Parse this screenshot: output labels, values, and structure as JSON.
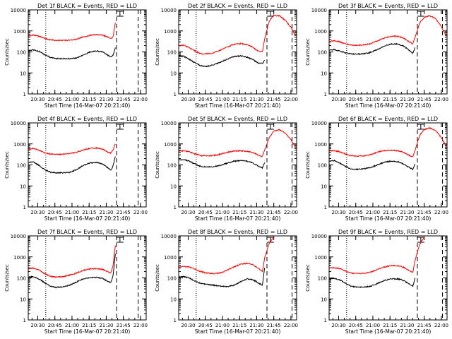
{
  "figure": {
    "x_tick_labels": [
      "20:30",
      "20:45",
      "21:00",
      "21:15",
      "21:30",
      "21:45",
      "22:00"
    ],
    "y_tick_labels": [
      "1",
      "10",
      "100",
      "1000",
      "10000"
    ],
    "colors": {
      "events": "#000000",
      "lld": "#ff0000",
      "axes": "#000000"
    }
  },
  "chart_data": [
    {
      "type": "line",
      "log_y": true,
      "ylim": [
        1,
        10000
      ],
      "title": "Det 1f BLACK = Events, RED = LLD",
      "xlabel": "Start Time (16-Mar-07 20:21:40)",
      "ylabel": "Counts/sec",
      "xlim": [
        "20:21:40",
        "22:05"
      ],
      "vlines_dotted": [
        "20:37"
      ],
      "vlines_dashed": [
        "21:39",
        "21:58"
      ],
      "flag_times": [
        "21:42"
      ],
      "series": [
        {
          "name": "Events",
          "color": "#000000",
          "x": [
            "20:22",
            "20:26",
            "20:31",
            "20:36",
            "20:41",
            "20:46",
            "20:52",
            "20:58",
            "21:04",
            "21:10",
            "21:16",
            "21:22",
            "21:27",
            "21:31",
            "21:34",
            "21:36",
            "21:38"
          ],
          "y": [
            115,
            125,
            108,
            75,
            55,
            48,
            48,
            47,
            52,
            70,
            100,
            110,
            100,
            72,
            55,
            70,
            160
          ]
        },
        {
          "name": "LLD",
          "color": "#ff0000",
          "x": [
            "20:22",
            "20:26",
            "20:31",
            "20:36",
            "20:41",
            "20:46",
            "20:52",
            "20:58",
            "21:04",
            "21:10",
            "21:16",
            "21:22",
            "21:27",
            "21:31",
            "21:34",
            "21:36",
            "21:38"
          ],
          "y": [
            560,
            640,
            560,
            440,
            375,
            360,
            355,
            360,
            400,
            520,
            620,
            660,
            620,
            520,
            420,
            520,
            2400
          ]
        }
      ]
    },
    {
      "type": "line",
      "log_y": true,
      "ylim": [
        1,
        10000
      ],
      "title": "Det 2f BLACK = Events, RED = LLD",
      "xlabel": "Start Time (16-Mar-07 20:21:40)",
      "ylabel": "Counts/sec",
      "xlim": [
        "20:21:40",
        "22:05"
      ],
      "vlines_dotted": [
        "20:37"
      ],
      "vlines_dashed": [
        "21:39",
        "22:01"
      ],
      "flag_times": [
        "21:42"
      ],
      "series": [
        {
          "name": "Events",
          "color": "#000000",
          "x": [
            "20:22",
            "20:26",
            "20:31",
            "20:36",
            "20:41",
            "20:46",
            "20:52",
            "20:58",
            "21:04",
            "21:10",
            "21:16",
            "21:22",
            "21:27",
            "21:31",
            "21:35",
            "21:37"
          ],
          "y": [
            65,
            62,
            45,
            30,
            22,
            20,
            24,
            32,
            45,
            60,
            65,
            55,
            42,
            30,
            28,
            40
          ]
        },
        {
          "name": "LLD",
          "color": "#ff0000",
          "x": [
            "20:22",
            "20:26",
            "20:31",
            "20:36",
            "20:41",
            "20:46",
            "20:52",
            "20:58",
            "21:04",
            "21:10",
            "21:16",
            "21:22",
            "21:27",
            "21:31",
            "21:35",
            "21:37",
            "21:41",
            "21:45",
            "21:50",
            "21:55",
            "22:00",
            "22:04"
          ],
          "y": [
            200,
            210,
            160,
            110,
            82,
            80,
            90,
            120,
            170,
            230,
            250,
            220,
            160,
            110,
            100,
            400,
            3000,
            5500,
            5200,
            3200,
            1500,
            600
          ]
        }
      ]
    },
    {
      "type": "line",
      "log_y": true,
      "ylim": [
        1,
        10000
      ],
      "title": "Det 3f BLACK = Events, RED = LLD",
      "xlabel": "Start Time (16-Mar-07 20:21:40)",
      "ylabel": "Counts/sec",
      "xlim": [
        "20:21:40",
        "22:05"
      ],
      "vlines_dotted": [
        "20:37"
      ],
      "vlines_dashed": [
        "21:39",
        "22:01"
      ],
      "flag_times": [
        "21:42"
      ],
      "series": [
        {
          "name": "Events",
          "color": "#000000",
          "x": [
            "20:22",
            "20:26",
            "20:31",
            "20:36",
            "20:41",
            "20:46",
            "20:52",
            "20:58",
            "21:04",
            "21:10",
            "21:16",
            "21:22",
            "21:27",
            "21:31",
            "21:35",
            "21:37"
          ],
          "y": [
            120,
            130,
            110,
            90,
            80,
            78,
            82,
            95,
            130,
            190,
            240,
            235,
            190,
            130,
            85,
            160
          ]
        },
        {
          "name": "LLD",
          "color": "#ff0000",
          "x": [
            "20:22",
            "20:26",
            "20:31",
            "20:36",
            "20:41",
            "20:46",
            "20:52",
            "20:58",
            "21:04",
            "21:10",
            "21:16",
            "21:22",
            "21:27",
            "21:31",
            "21:35",
            "21:37",
            "21:41",
            "21:45",
            "21:50",
            "21:55",
            "22:00",
            "22:04"
          ],
          "y": [
            320,
            350,
            300,
            240,
            210,
            205,
            215,
            250,
            330,
            450,
            560,
            560,
            450,
            320,
            240,
            500,
            2400,
            4500,
            5300,
            3800,
            1600,
            600
          ]
        }
      ]
    },
    {
      "type": "line",
      "log_y": true,
      "ylim": [
        1,
        10000
      ],
      "title": "Det 4f BLACK = Events, RED = LLD",
      "xlabel": "Start Time (16-Mar-07 20:21:40)",
      "ylabel": "Counts/sec",
      "xlim": [
        "20:21:40",
        "22:05"
      ],
      "vlines_dotted": [
        "20:37"
      ],
      "vlines_dashed": [
        "21:39",
        "21:58"
      ],
      "flag_times": [
        "21:42"
      ],
      "series": [
        {
          "name": "Events",
          "color": "#000000",
          "x": [
            "20:22",
            "20:26",
            "20:31",
            "20:36",
            "20:41",
            "20:46",
            "20:52",
            "20:58",
            "21:04",
            "21:10",
            "21:16",
            "21:22",
            "21:27",
            "21:31",
            "21:34",
            "21:36",
            "21:38"
          ],
          "y": [
            130,
            140,
            95,
            60,
            45,
            42,
            42,
            44,
            60,
            95,
            125,
            130,
            110,
            75,
            55,
            90,
            250
          ]
        },
        {
          "name": "LLD",
          "color": "#ff0000",
          "x": [
            "20:22",
            "20:26",
            "20:31",
            "20:36",
            "20:41",
            "20:46",
            "20:52",
            "20:58",
            "21:04",
            "21:10",
            "21:16",
            "21:22",
            "21:27",
            "21:31",
            "21:34",
            "21:36",
            "21:38"
          ],
          "y": [
            560,
            620,
            500,
            380,
            330,
            320,
            320,
            340,
            400,
            520,
            620,
            640,
            560,
            420,
            360,
            520,
            1000
          ]
        }
      ]
    },
    {
      "type": "line",
      "log_y": true,
      "ylim": [
        1,
        10000
      ],
      "title": "Det 5f BLACK = Events, RED = LLD",
      "xlabel": "Start Time (16-Mar-07 20:21:40)",
      "ylabel": "Counts/sec",
      "xlim": [
        "20:21:40",
        "22:05"
      ],
      "vlines_dotted": [
        "20:37"
      ],
      "vlines_dashed": [
        "21:39",
        "22:01"
      ],
      "flag_times": [
        "21:42"
      ],
      "series": [
        {
          "name": "Events",
          "color": "#000000",
          "x": [
            "20:22",
            "20:26",
            "20:31",
            "20:36",
            "20:41",
            "20:46",
            "20:52",
            "20:58",
            "21:04",
            "21:10",
            "21:16",
            "21:22",
            "21:27",
            "21:31",
            "21:35",
            "21:37"
          ],
          "y": [
            170,
            180,
            150,
            110,
            85,
            80,
            82,
            95,
            120,
            150,
            160,
            150,
            120,
            90,
            70,
            130
          ]
        },
        {
          "name": "LLD",
          "color": "#ff0000",
          "x": [
            "20:22",
            "20:26",
            "20:31",
            "20:36",
            "20:41",
            "20:46",
            "20:52",
            "20:58",
            "21:04",
            "21:10",
            "21:16",
            "21:22",
            "21:27",
            "21:31",
            "21:35",
            "21:37",
            "21:41",
            "21:45",
            "21:50",
            "21:55",
            "22:00",
            "22:04"
          ],
          "y": [
            450,
            470,
            420,
            330,
            280,
            270,
            280,
            320,
            400,
            460,
            470,
            440,
            380,
            300,
            250,
            500,
            2000,
            4000,
            4800,
            3300,
            1600,
            700
          ]
        }
      ]
    },
    {
      "type": "line",
      "log_y": true,
      "ylim": [
        1,
        10000
      ],
      "title": "Det 6f BLACK = Events, RED = LLD",
      "xlabel": "Start Time (16-Mar-07 20:21:40)",
      "ylabel": "Counts/sec",
      "xlim": [
        "20:21:40",
        "22:05"
      ],
      "vlines_dotted": [
        "20:37"
      ],
      "vlines_dashed": [
        "21:39",
        "22:01"
      ],
      "flag_times": [
        "21:42"
      ],
      "series": [
        {
          "name": "Events",
          "color": "#000000",
          "x": [
            "20:22",
            "20:26",
            "20:31",
            "20:36",
            "20:41",
            "20:46",
            "20:52",
            "20:58",
            "21:04",
            "21:10",
            "21:16",
            "21:22",
            "21:27",
            "21:31",
            "21:35",
            "21:37"
          ],
          "y": [
            150,
            160,
            120,
            85,
            65,
            62,
            65,
            75,
            100,
            135,
            150,
            140,
            110,
            80,
            60,
            110
          ]
        },
        {
          "name": "LLD",
          "color": "#ff0000",
          "x": [
            "20:22",
            "20:26",
            "20:31",
            "20:36",
            "20:41",
            "20:46",
            "20:52",
            "20:58",
            "21:04",
            "21:10",
            "21:16",
            "21:22",
            "21:27",
            "21:31",
            "21:35",
            "21:37",
            "21:41",
            "21:45",
            "21:50",
            "21:55",
            "22:00",
            "22:04"
          ],
          "y": [
            460,
            480,
            420,
            330,
            270,
            260,
            270,
            310,
            400,
            480,
            500,
            470,
            400,
            300,
            240,
            500,
            2600,
            4800,
            5800,
            4300,
            2000,
            800
          ]
        }
      ]
    },
    {
      "type": "line",
      "log_y": true,
      "ylim": [
        1,
        10000
      ],
      "title": "Det 7f BLACK = Events, RED = LLD",
      "xlabel": "Start Time (16-Mar-07 20:21:40)",
      "ylabel": "Counts/sec",
      "xlim": [
        "20:21:40",
        "22:05"
      ],
      "vlines_dotted": [
        "20:37"
      ],
      "vlines_dashed": [
        "21:39",
        "21:58"
      ],
      "flag_times": [
        "21:42"
      ],
      "series": [
        {
          "name": "Events",
          "color": "#000000",
          "x": [
            "20:22",
            "20:26",
            "20:31",
            "20:36",
            "20:41",
            "20:46",
            "20:52",
            "20:58",
            "21:04",
            "21:10",
            "21:16",
            "21:22",
            "21:27",
            "21:31",
            "21:34",
            "21:36",
            "21:38"
          ],
          "y": [
            110,
            115,
            90,
            60,
            40,
            35,
            38,
            45,
            65,
            90,
            105,
            105,
            95,
            70,
            60,
            130,
            1400
          ]
        },
        {
          "name": "LLD",
          "color": "#ff0000",
          "x": [
            "20:22",
            "20:26",
            "20:31",
            "20:36",
            "20:41",
            "20:46",
            "20:52",
            "20:58",
            "21:04",
            "21:10",
            "21:16",
            "21:22",
            "21:27",
            "21:31",
            "21:34",
            "21:36",
            "21:38"
          ],
          "y": [
            280,
            290,
            240,
            160,
            120,
            110,
            115,
            135,
            170,
            230,
            270,
            275,
            250,
            200,
            170,
            400,
            3500
          ]
        }
      ]
    },
    {
      "type": "line",
      "log_y": true,
      "ylim": [
        1,
        10000
      ],
      "title": "Det 8f BLACK = Events, RED = LLD",
      "xlabel": "Start Time (16-Mar-07 20:21:40)",
      "ylabel": "Counts/sec",
      "xlim": [
        "20:21:40",
        "22:05"
      ],
      "vlines_dotted": [
        "20:37"
      ],
      "vlines_dashed": [
        "21:39",
        "22:01"
      ],
      "flag_times": [
        "21:42"
      ],
      "series": [
        {
          "name": "Events",
          "color": "#000000",
          "x": [
            "20:22",
            "20:26",
            "20:31",
            "20:36",
            "20:41",
            "20:46",
            "20:52",
            "20:58",
            "21:04",
            "21:10",
            "21:16",
            "21:22",
            "21:27",
            "21:31",
            "21:35",
            "21:37"
          ],
          "y": [
            110,
            115,
            100,
            70,
            55,
            50,
            45,
            40,
            38,
            45,
            65,
            90,
            80,
            60,
            45,
            300
          ]
        },
        {
          "name": "LLD",
          "color": "#ff0000",
          "x": [
            "20:22",
            "20:26",
            "20:31",
            "20:36",
            "20:41",
            "20:46",
            "20:52",
            "20:58",
            "21:04",
            "21:10",
            "21:16",
            "21:22",
            "21:27",
            "21:31",
            "21:35",
            "21:37",
            "21:41",
            "21:45"
          ],
          "y": [
            330,
            350,
            330,
            260,
            200,
            170,
            160,
            170,
            230,
            330,
            450,
            500,
            420,
            300,
            200,
            900,
            4500,
            9000
          ]
        }
      ]
    },
    {
      "type": "line",
      "log_y": true,
      "ylim": [
        1,
        10000
      ],
      "title": "Det 9f BLACK = Events, RED = LLD",
      "xlabel": "Start Time (16-Mar-07 20:21:40)",
      "ylabel": "Counts/sec",
      "xlim": [
        "20:21:40",
        "22:05"
      ],
      "vlines_dotted": [
        "20:37"
      ],
      "vlines_dashed": [
        "21:39",
        "22:01"
      ],
      "flag_times": [
        "21:42"
      ],
      "series": [
        {
          "name": "Events",
          "color": "#000000",
          "x": [
            "20:22",
            "20:26",
            "20:31",
            "20:36",
            "20:41",
            "20:46",
            "20:52",
            "20:58",
            "21:04",
            "21:10",
            "21:16",
            "21:22",
            "21:27",
            "21:31",
            "21:35",
            "21:37"
          ],
          "y": [
            90,
            95,
            80,
            55,
            40,
            36,
            36,
            40,
            55,
            75,
            90,
            90,
            75,
            55,
            40,
            100
          ]
        },
        {
          "name": "LLD",
          "color": "#ff0000",
          "x": [
            "20:22",
            "20:26",
            "20:31",
            "20:36",
            "20:41",
            "20:46",
            "20:52",
            "20:58",
            "21:04",
            "21:10",
            "21:16",
            "21:22",
            "21:27",
            "21:31",
            "21:35",
            "21:37",
            "21:41",
            "21:45"
          ],
          "y": [
            300,
            310,
            280,
            210,
            170,
            160,
            165,
            190,
            250,
            330,
            380,
            380,
            320,
            240,
            180,
            700,
            4000,
            9000
          ]
        }
      ]
    }
  ]
}
